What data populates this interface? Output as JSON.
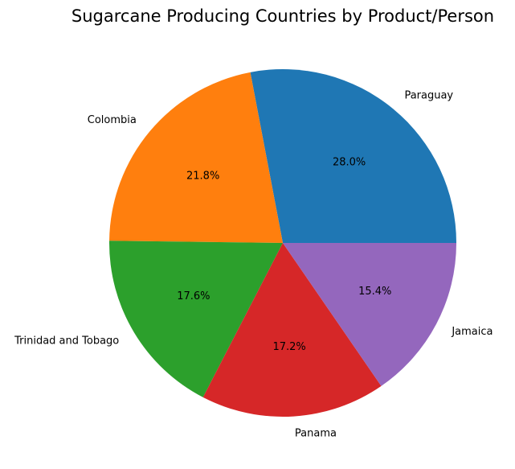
{
  "chart_data": {
    "type": "pie",
    "title": "Sugarcane Producing Countries by Product/Person",
    "categories": [
      "Paraguay",
      "Colombia",
      "Trinidad and Tobago",
      "Panama",
      "Jamaica"
    ],
    "values": [
      28.0,
      21.8,
      17.6,
      17.2,
      15.4
    ],
    "percent_labels": [
      "28.0%",
      "21.8%",
      "17.6%",
      "17.2%",
      "15.4%"
    ],
    "colors": [
      "#1f77b4",
      "#ff7f0e",
      "#2ca02c",
      "#d62728",
      "#9467bd"
    ],
    "start_angle_deg": 0,
    "direction": "counterclockwise",
    "legend": "none"
  }
}
